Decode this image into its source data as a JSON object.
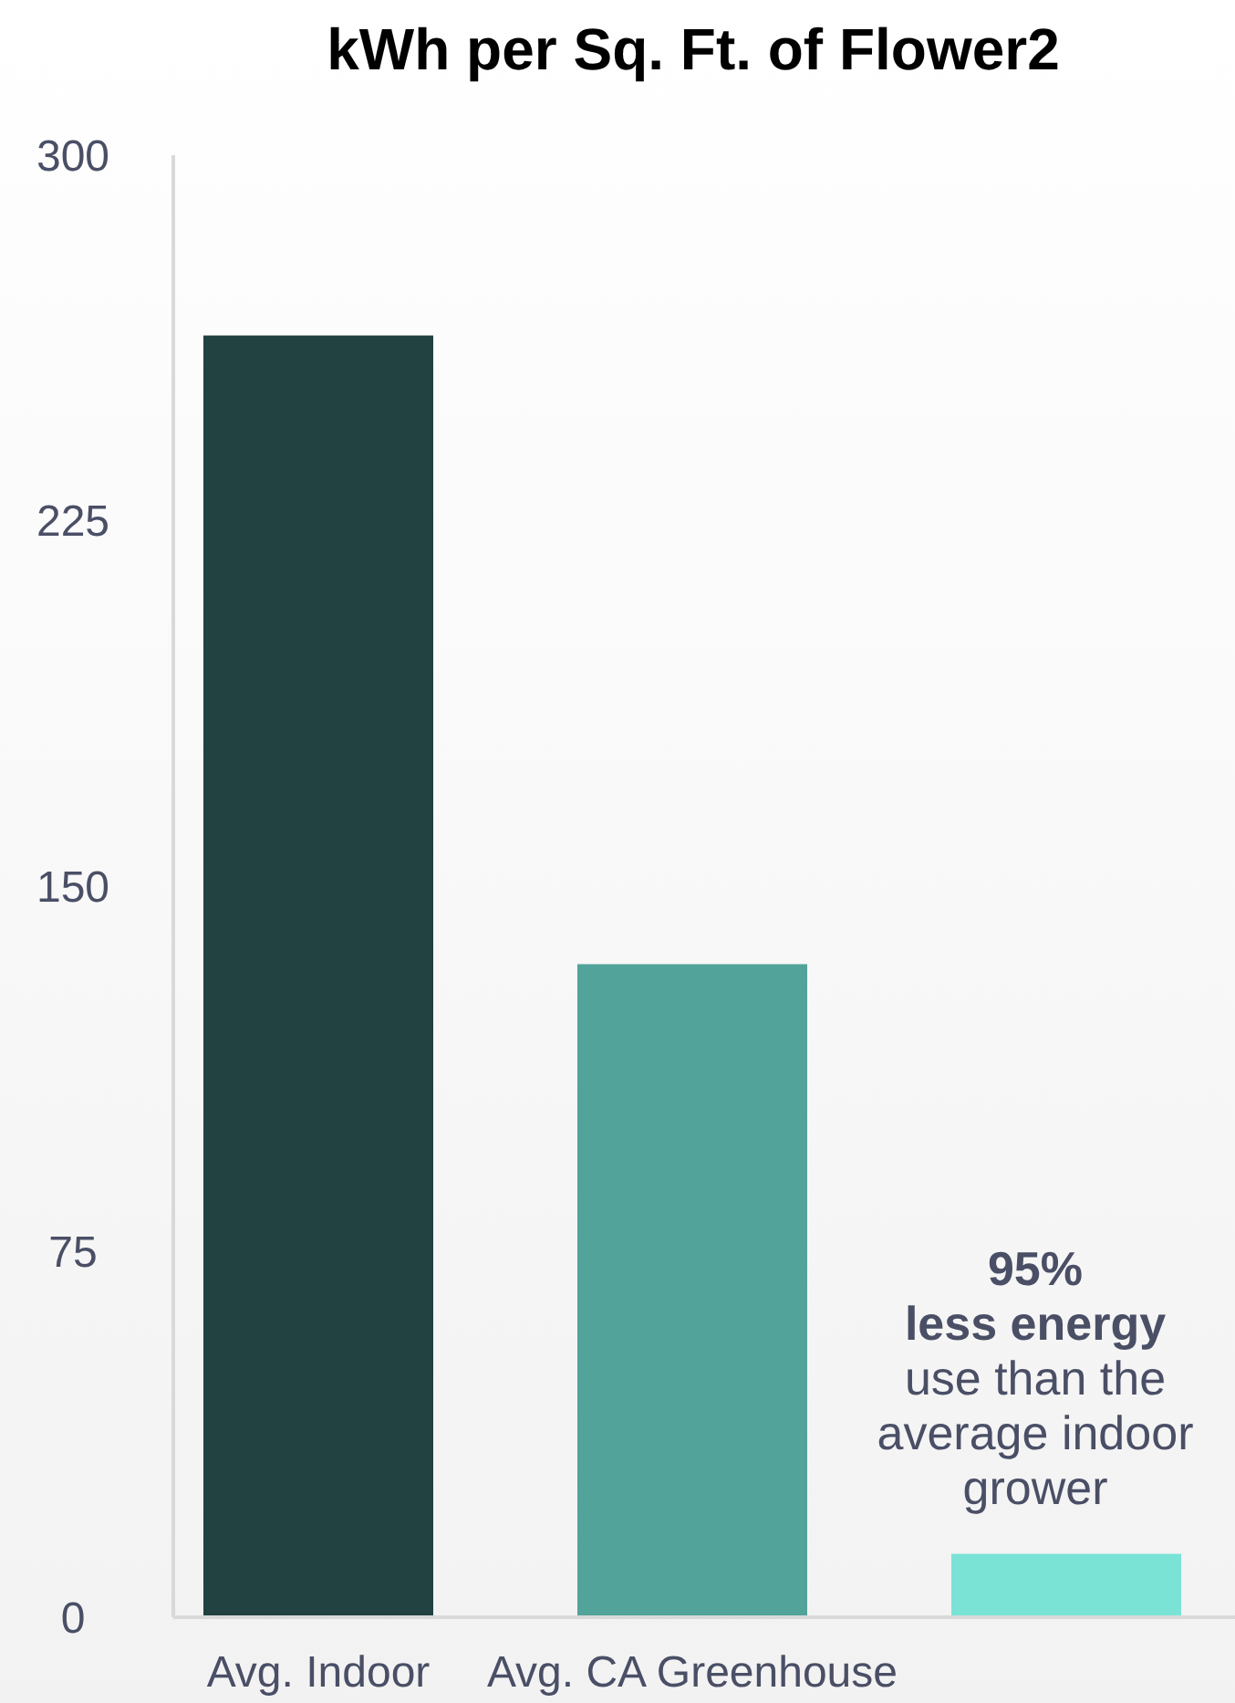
{
  "chart_data": {
    "type": "bar",
    "title": "kWh per Sq. Ft. of Flower2",
    "categories": [
      "Avg. Indoor",
      "Avg. CA Greenhouse",
      null
    ],
    "values": [
      263,
      134,
      13
    ],
    "colors": [
      "#214240",
      "#52a39a",
      "#7ae3d6"
    ],
    "ylim": [
      0,
      300
    ],
    "yticks": [
      0,
      75,
      150,
      225,
      300
    ],
    "grid": false,
    "annotations": [
      "95%",
      "less energy",
      "use than the average indoor grower"
    ]
  }
}
